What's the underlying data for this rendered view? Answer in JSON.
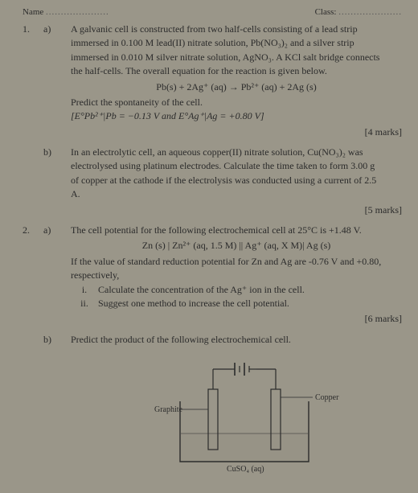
{
  "header": {
    "name_label": "Name",
    "class_label": "Class:"
  },
  "q1": {
    "num": "1.",
    "a": {
      "label": "a)",
      "line1": "A galvanic cell is constructed from two half-cells consisting of a lead strip",
      "line2": "immersed in 0.100 M lead(II) nitrate solution, Pb(NO₃)₂ and a silver strip",
      "line3": "immersed in 0.010 M silver nitrate solution, AgNO₃. A KCl salt bridge connects",
      "line4": "the half-cells. The overall equation for the reaction is given below.",
      "eqn": "Pb(s) + 2Ag⁺ (aq) → Pb²⁺ (aq) + 2Ag (s)",
      "predict": "Predict the spontaneity of the cell.",
      "given": "[E°Pb²⁺|Pb = −0.13 V and E°Ag⁺|Ag = +0.80 V]",
      "marks": "[4 marks]"
    },
    "b": {
      "label": "b)",
      "line1": "In an electrolytic cell, an aqueous copper(II) nitrate solution, Cu(NO₃)₂ was",
      "line2": "electrolysed using platinum electrodes. Calculate the time taken to form 3.00 g",
      "line3": "of copper at the cathode if the electrolysis was conducted using a current of 2.5",
      "line4": "A.",
      "marks": "[5 marks]"
    }
  },
  "q2": {
    "num": "2.",
    "a": {
      "label": "a)",
      "line1": "The cell potential for the following electrochemical cell at 25°C is +1.48 V.",
      "notation": "Zn (s) | Zn²⁺ (aq, 1.5 M) || Ag⁺ (aq, X M)| Ag (s)",
      "line2": "If the value of standard reduction potential for Zn and Ag are -0.76 V and +0.80,",
      "line3": "respectively,",
      "i_label": "i.",
      "i_text": "Calculate the concentration of the Ag⁺ ion in the cell.",
      "ii_label": "ii.",
      "ii_text": "Suggest one method to increase the cell potential.",
      "marks": "[6 marks]"
    },
    "b": {
      "label": "b)",
      "line1": "Predict the product of the following electrochemical cell."
    }
  },
  "diagram": {
    "graphite": "Graphite",
    "copper": "Copper",
    "solution": "CuSO₄ (aq)",
    "stroke": "#2b2b2b",
    "fill_liquid": "#8f8b7e",
    "fill_bg": "#9a9689"
  }
}
